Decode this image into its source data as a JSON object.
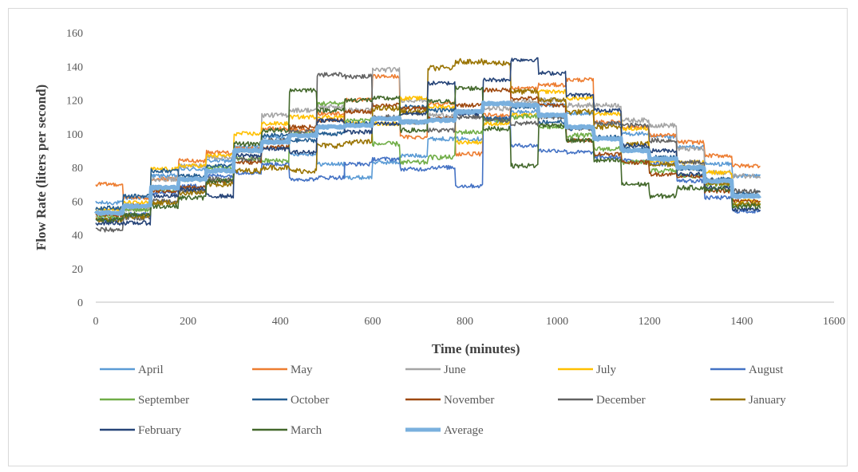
{
  "chart_data": {
    "type": "line",
    "title": "",
    "xlabel": "Time (minutes)",
    "ylabel": "Flow Rate (liters per second)",
    "xlim": [
      0,
      1600
    ],
    "ylim": [
      0,
      160
    ],
    "x_ticks": [
      0,
      200,
      400,
      600,
      800,
      1000,
      1200,
      1400,
      1600
    ],
    "y_ticks": [
      0,
      20,
      40,
      60,
      80,
      100,
      120,
      140,
      160
    ],
    "grid": false,
    "legend_position": "bottom",
    "step_minutes": 60,
    "x_end": 1440,
    "series": [
      {
        "name": "April",
        "color": "#5b9bd5",
        "width": 1.6,
        "noise": 1.2,
        "values": [
          59,
          62,
          75,
          79,
          84,
          92,
          98,
          88,
          82,
          74,
          83,
          87,
          97,
          97,
          108,
          113,
          117,
          112,
          106,
          100,
          98,
          92,
          82,
          75
        ]
      },
      {
        "name": "May",
        "color": "#ed7d31",
        "width": 1.6,
        "noise": 1.2,
        "values": [
          70,
          62,
          73,
          84,
          89,
          91,
          103,
          102,
          112,
          120,
          134,
          98,
          118,
          88,
          111,
          127,
          129,
          132,
          107,
          104,
          99,
          95,
          87,
          81
        ]
      },
      {
        "name": "June",
        "color": "#a5a5a5",
        "width": 1.6,
        "noise": 1.4,
        "values": [
          52,
          55,
          73,
          81,
          86,
          90,
          111,
          114,
          116,
          114,
          138,
          120,
          111,
          113,
          115,
          119,
          120,
          117,
          117,
          108,
          105,
          91,
          77,
          75
        ]
      },
      {
        "name": "July",
        "color": "#ffc000",
        "width": 1.6,
        "noise": 1.2,
        "values": [
          55,
          59,
          79,
          81,
          87,
          100,
          106,
          110,
          110,
          106,
          106,
          121,
          116,
          95,
          106,
          111,
          125,
          121,
          112,
          103,
          84,
          83,
          77,
          60
        ]
      },
      {
        "name": "August",
        "color": "#4472c4",
        "width": 1.6,
        "noise": 1.2,
        "values": [
          49,
          52,
          65,
          69,
          75,
          77,
          82,
          73,
          74,
          82,
          85,
          79,
          80,
          69,
          109,
          93,
          90,
          89,
          86,
          84,
          82,
          72,
          62,
          54
        ]
      },
      {
        "name": "September",
        "color": "#70ad47",
        "width": 1.6,
        "noise": 1.4,
        "values": [
          51,
          55,
          67,
          73,
          80,
          85,
          84,
          100,
          118,
          108,
          94,
          83,
          86,
          101,
          108,
          110,
          104,
          99,
          91,
          83,
          78,
          75,
          70,
          58
        ]
      },
      {
        "name": "October",
        "color": "#255e91",
        "width": 1.6,
        "noise": 1.2,
        "values": [
          56,
          63,
          78,
          75,
          81,
          90,
          99,
          96,
          100,
          106,
          109,
          116,
          114,
          113,
          109,
          116,
          107,
          103,
          98,
          91,
          86,
          79,
          73,
          65
        ]
      },
      {
        "name": "November",
        "color": "#9e480e",
        "width": 1.6,
        "noise": 1.2,
        "values": [
          52,
          57,
          66,
          68,
          72,
          83,
          92,
          104,
          108,
          113,
          117,
          115,
          109,
          117,
          126,
          121,
          117,
          96,
          88,
          83,
          76,
          75,
          66,
          60
        ]
      },
      {
        "name": "December",
        "color": "#636363",
        "width": 1.6,
        "noise": 1.4,
        "values": [
          43,
          50,
          60,
          66,
          73,
          85,
          96,
          101,
          135,
          134,
          110,
          107,
          102,
          110,
          108,
          106,
          110,
          103,
          106,
          105,
          96,
          83,
          72,
          66
        ]
      },
      {
        "name": "January",
        "color": "#997300",
        "width": 1.6,
        "noise": 1.6,
        "values": [
          49,
          51,
          59,
          65,
          70,
          78,
          80,
          78,
          93,
          95,
          115,
          113,
          139,
          143,
          142,
          125,
          120,
          113,
          104,
          94,
          82,
          80,
          71,
          58
        ]
      },
      {
        "name": "February",
        "color": "#264478",
        "width": 1.6,
        "noise": 1.2,
        "values": [
          47,
          47,
          63,
          67,
          63,
          87,
          91,
          89,
          108,
          101,
          106,
          112,
          130,
          112,
          132,
          144,
          136,
          123,
          114,
          93,
          90,
          76,
          68,
          55
        ]
      },
      {
        "name": "March",
        "color": "#43682b",
        "width": 1.6,
        "noise": 1.4,
        "values": [
          49,
          52,
          57,
          62,
          72,
          94,
          102,
          126,
          114,
          120,
          121,
          102,
          119,
          127,
          103,
          81,
          105,
          96,
          84,
          70,
          63,
          68,
          67,
          57
        ]
      },
      {
        "name": "Average",
        "color": "#7ab0de",
        "width": 5,
        "noise": 0.6,
        "values": [
          53,
          57,
          68,
          73,
          78,
          90,
          95,
          99,
          104,
          105,
          109,
          107,
          108,
          113,
          118,
          117,
          111,
          104,
          97,
          90,
          85,
          80,
          72,
          63
        ]
      }
    ]
  }
}
